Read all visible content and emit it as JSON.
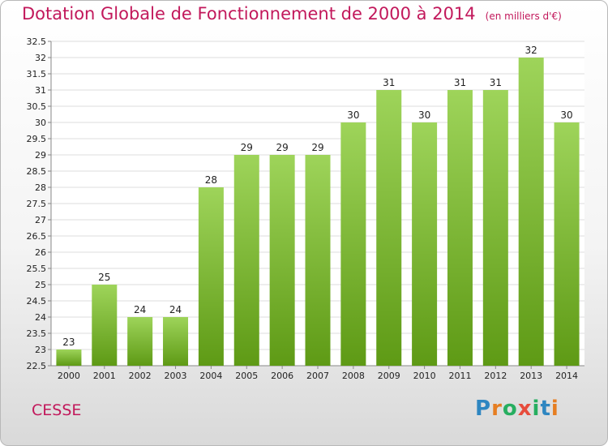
{
  "title": "Dotation Globale de Fonctionnement de 2000 à 2014",
  "unit": "(en milliers d'€)",
  "place": "CESSE",
  "brand": {
    "text": "Proxiti",
    "letters": [
      {
        "ch": "P",
        "color": "#2e86c1"
      },
      {
        "ch": "r",
        "color": "#e67e22"
      },
      {
        "ch": "o",
        "color": "#27ae60"
      },
      {
        "ch": "x",
        "color": "#e74c3c"
      },
      {
        "ch": "i",
        "color": "#27ae60"
      },
      {
        "ch": "t",
        "color": "#2e86c1"
      },
      {
        "ch": "i",
        "color": "#e67e22"
      }
    ]
  },
  "colors": {
    "bar_top": "#9ed45a",
    "bar_bottom": "#5e9a15",
    "title": "#c2185b",
    "grid": "#dddddd"
  },
  "chart_data": {
    "type": "bar",
    "title": "Dotation Globale de Fonctionnement de 2000 à 2014",
    "subtitle": "(en milliers d'€)",
    "categories": [
      "2000",
      "2001",
      "2002",
      "2003",
      "2004",
      "2005",
      "2006",
      "2007",
      "2008",
      "2009",
      "2010",
      "2011",
      "2012",
      "2013",
      "2014"
    ],
    "values": [
      23,
      25,
      24,
      24,
      28,
      29,
      29,
      29,
      30,
      31,
      30,
      31,
      31,
      32,
      30
    ],
    "xlabel": "",
    "ylabel": "",
    "ylim": [
      22.5,
      32.5
    ],
    "yticks": [
      "22.5",
      "23",
      "23.5",
      "24",
      "24.5",
      "25",
      "25.5",
      "26",
      "26.5",
      "27",
      "27.5",
      "28",
      "28.5",
      "29",
      "29.5",
      "30",
      "30.5",
      "31",
      "31.5",
      "32",
      "32.5"
    ],
    "grid": true,
    "legend": "none"
  }
}
